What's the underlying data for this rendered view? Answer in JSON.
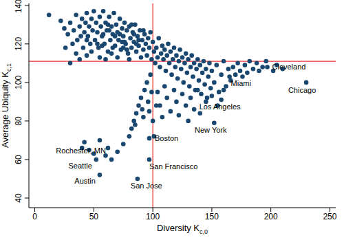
{
  "chart_data": {
    "type": "scatter",
    "marker": "circle",
    "color": "#1a476f",
    "grid": false,
    "x_label": {
      "text": "Diversity  K",
      "subscript": "c,0"
    },
    "y_label": {
      "text": "Average Ubiquity  K",
      "subscript": "c,1"
    },
    "xlim": [
      -5,
      255
    ],
    "xticks": [
      0,
      50,
      100,
      150,
      200,
      250
    ],
    "ylim": [
      35,
      141
    ],
    "yticks": [
      40,
      60,
      80,
      100,
      120,
      140
    ],
    "reference_lines": {
      "x": 100,
      "y": 111,
      "color": "#e8352e"
    },
    "points": [
      [
        12,
        135
      ],
      [
        22,
        132
      ],
      [
        25,
        128
      ],
      [
        28,
        125
      ],
      [
        30,
        131
      ],
      [
        32,
        120
      ],
      [
        33,
        127
      ],
      [
        35,
        135
      ],
      [
        36,
        122
      ],
      [
        38,
        129
      ],
      [
        40,
        133
      ],
      [
        41,
        118
      ],
      [
        42,
        126
      ],
      [
        43,
        131
      ],
      [
        44,
        136
      ],
      [
        45,
        124
      ],
      [
        46,
        129
      ],
      [
        47,
        120
      ],
      [
        48,
        133
      ],
      [
        49,
        127
      ],
      [
        50,
        137
      ],
      [
        51,
        122
      ],
      [
        52,
        131
      ],
      [
        53,
        126
      ],
      [
        54,
        118
      ],
      [
        55,
        134
      ],
      [
        56,
        129
      ],
      [
        57,
        124
      ],
      [
        58,
        137
      ],
      [
        59,
        120
      ],
      [
        60,
        131
      ],
      [
        61,
        127
      ],
      [
        62,
        116
      ],
      [
        63,
        134
      ],
      [
        64,
        122
      ],
      [
        65,
        129
      ],
      [
        66,
        125
      ],
      [
        67,
        136
      ],
      [
        68,
        119
      ],
      [
        69,
        130
      ],
      [
        70,
        126
      ],
      [
        71,
        122
      ],
      [
        72,
        133
      ],
      [
        73,
        117
      ],
      [
        74,
        128
      ],
      [
        75,
        124
      ],
      [
        76,
        131
      ],
      [
        77,
        120
      ],
      [
        78,
        127
      ],
      [
        79,
        115
      ],
      [
        80,
        129
      ],
      [
        81,
        123
      ],
      [
        82,
        118
      ],
      [
        83,
        126
      ],
      [
        84,
        121
      ],
      [
        85,
        130
      ],
      [
        86,
        116
      ],
      [
        87,
        124
      ],
      [
        88,
        119
      ],
      [
        89,
        127
      ],
      [
        90,
        113
      ],
      [
        91,
        122
      ],
      [
        92,
        117
      ],
      [
        93,
        125
      ],
      [
        94,
        120
      ],
      [
        95,
        114
      ],
      [
        96,
        123
      ],
      [
        97,
        118
      ],
      [
        98,
        126
      ],
      [
        99,
        112
      ],
      [
        26,
        118
      ],
      [
        30,
        110
      ],
      [
        35,
        115
      ],
      [
        38,
        112
      ],
      [
        44,
        114
      ],
      [
        48,
        116
      ],
      [
        55,
        113
      ],
      [
        60,
        112
      ],
      [
        65,
        115
      ],
      [
        70,
        113
      ],
      [
        75,
        118
      ],
      [
        80,
        112
      ],
      [
        58,
        125
      ],
      [
        62,
        130
      ],
      [
        66,
        118
      ],
      [
        72,
        125
      ],
      [
        76,
        121
      ],
      [
        84,
        125
      ],
      [
        88,
        122
      ],
      [
        92,
        127
      ],
      [
        44,
        122
      ],
      [
        39,
        124
      ],
      [
        53,
        120
      ],
      [
        57,
        119
      ],
      [
        63,
        127
      ],
      [
        68,
        124
      ],
      [
        74,
        121
      ],
      [
        78,
        117
      ],
      [
        82,
        130
      ],
      [
        86,
        120
      ],
      [
        100,
        121
      ],
      [
        101,
        116
      ],
      [
        102,
        110
      ],
      [
        103,
        118
      ],
      [
        104,
        113
      ],
      [
        105,
        123
      ],
      [
        106,
        108
      ],
      [
        107,
        115
      ],
      [
        108,
        119
      ],
      [
        109,
        112
      ],
      [
        110,
        117
      ],
      [
        111,
        106
      ],
      [
        112,
        114
      ],
      [
        113,
        120
      ],
      [
        114,
        110
      ],
      [
        115,
        116
      ],
      [
        116,
        104
      ],
      [
        117,
        112
      ],
      [
        118,
        118
      ],
      [
        119,
        108
      ],
      [
        120,
        114
      ],
      [
        121,
        102
      ],
      [
        122,
        111
      ],
      [
        123,
        117
      ],
      [
        124,
        107
      ],
      [
        125,
        113
      ],
      [
        126,
        100
      ],
      [
        127,
        110
      ],
      [
        128,
        115
      ],
      [
        129,
        105
      ],
      [
        130,
        112
      ],
      [
        131,
        98
      ],
      [
        132,
        108
      ],
      [
        133,
        114
      ],
      [
        134,
        103
      ],
      [
        135,
        110
      ],
      [
        136,
        96
      ],
      [
        137,
        107
      ],
      [
        138,
        112
      ],
      [
        139,
        101
      ],
      [
        140,
        109
      ],
      [
        141,
        94
      ],
      [
        142,
        105
      ],
      [
        143,
        111
      ],
      [
        144,
        99
      ],
      [
        145,
        107
      ],
      [
        146,
        92
      ],
      [
        147,
        103
      ],
      [
        148,
        110
      ],
      [
        149,
        97
      ],
      [
        150,
        106
      ],
      [
        152,
        100
      ],
      [
        154,
        109
      ],
      [
        156,
        95
      ],
      [
        158,
        104
      ],
      [
        160,
        111
      ],
      [
        162,
        98
      ],
      [
        164,
        107
      ],
      [
        166,
        101
      ],
      [
        168,
        108
      ],
      [
        170,
        104
      ],
      [
        172,
        110
      ],
      [
        174,
        106
      ],
      [
        176,
        103
      ],
      [
        178,
        109
      ],
      [
        180,
        105
      ],
      [
        182,
        111
      ],
      [
        185,
        107
      ],
      [
        188,
        110
      ],
      [
        190,
        106
      ],
      [
        193,
        108
      ],
      [
        196,
        111
      ],
      [
        202,
        106
      ],
      [
        205,
        109
      ],
      [
        210,
        107
      ],
      [
        98,
        104
      ],
      [
        95,
        100
      ],
      [
        93,
        96
      ],
      [
        90,
        92
      ],
      [
        88,
        88
      ],
      [
        86,
        84
      ],
      [
        84,
        80
      ],
      [
        82,
        76
      ],
      [
        96,
        90
      ],
      [
        99,
        95
      ],
      [
        97,
        85
      ],
      [
        92,
        82
      ],
      [
        80,
        72
      ],
      [
        75,
        68
      ],
      [
        70,
        64
      ],
      [
        65,
        60
      ],
      [
        60,
        62
      ],
      [
        50,
        63
      ],
      [
        46,
        65
      ],
      [
        40,
        66
      ],
      [
        55,
        70
      ],
      [
        62,
        66
      ],
      [
        85,
        78
      ],
      [
        91,
        86
      ],
      [
        104,
        95
      ],
      [
        106,
        88
      ],
      [
        110,
        98
      ],
      [
        112,
        92
      ],
      [
        115,
        85
      ],
      [
        118,
        96
      ],
      [
        120,
        90
      ],
      [
        122,
        83
      ],
      [
        125,
        94
      ],
      [
        128,
        88
      ],
      [
        130,
        80
      ],
      [
        132,
        92
      ],
      [
        135,
        86
      ],
      [
        138,
        96
      ],
      [
        140,
        84
      ],
      [
        145,
        90
      ],
      [
        150,
        93
      ],
      [
        155,
        88
      ],
      [
        160,
        96
      ],
      [
        100,
        80
      ],
      [
        101,
        72
      ],
      [
        103,
        88
      ],
      [
        108,
        82
      ]
    ],
    "labeled_points": [
      {
        "label": "Rochester, MN",
        "x": 42,
        "y": 69
      },
      {
        "label": "Seattle",
        "x": 52,
        "y": 60
      },
      {
        "label": "Austin",
        "x": 55,
        "y": 52
      },
      {
        "label": "San Jose",
        "x": 87,
        "y": 50
      },
      {
        "label": "San Francisco",
        "x": 97,
        "y": 60
      },
      {
        "label": "Boston",
        "x": 97,
        "y": 71
      },
      {
        "label": "New York",
        "x": 152,
        "y": 79
      },
      {
        "label": "Los Angeles",
        "x": 158,
        "y": 91
      },
      {
        "label": "Miami",
        "x": 165,
        "y": 103
      },
      {
        "label": "Cleveland",
        "x": 197,
        "y": 108
      },
      {
        "label": "Chicago",
        "x": 230,
        "y": 100
      }
    ]
  }
}
